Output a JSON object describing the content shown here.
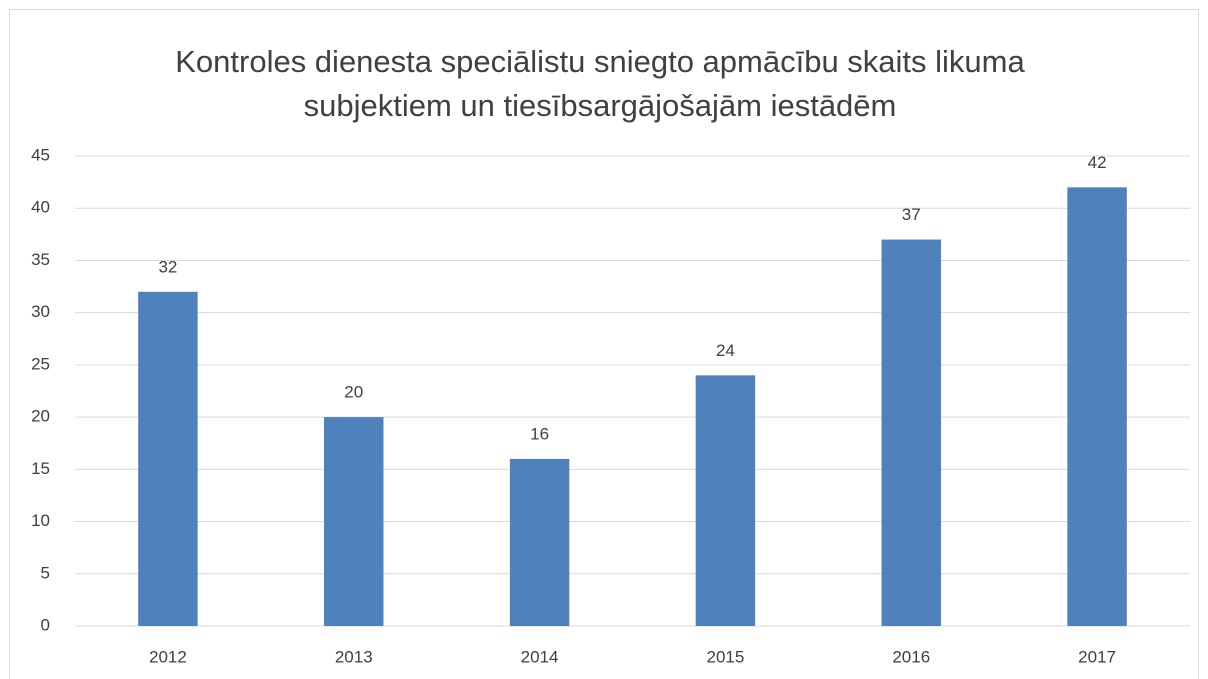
{
  "chart_data": {
    "type": "bar",
    "title": "Kontroles dienesta speciālistu sniegto apmācību skaits likuma subjektiem un tiesībsargājošajām iestādēm",
    "categories": [
      "2012",
      "2013",
      "2014",
      "2015",
      "2016",
      "2017"
    ],
    "values": [
      32,
      20,
      16,
      24,
      37,
      42
    ],
    "color": "#4f81bd",
    "ylim": [
      0,
      45
    ],
    "yticks": [
      0,
      5,
      10,
      15,
      20,
      25,
      30,
      35,
      40,
      45
    ],
    "grid": true,
    "data_labels": true
  }
}
